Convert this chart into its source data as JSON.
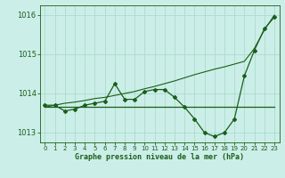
{
  "background_color": "#cceee8",
  "grid_color": "#aaddcc",
  "line_color_main": "#1a5e1a",
  "x_labels": [
    "0",
    "1",
    "2",
    "3",
    "4",
    "5",
    "6",
    "7",
    "8",
    "9",
    "10",
    "11",
    "12",
    "13",
    "14",
    "15",
    "16",
    "17",
    "18",
    "19",
    "20",
    "21",
    "22",
    "23"
  ],
  "hours": [
    0,
    1,
    2,
    3,
    4,
    5,
    6,
    7,
    8,
    9,
    10,
    11,
    12,
    13,
    14,
    15,
    16,
    17,
    18,
    19,
    20,
    21,
    22,
    23
  ],
  "pressure_actual": [
    1013.7,
    1013.7,
    1013.55,
    1013.6,
    1013.7,
    1013.75,
    1013.8,
    1014.25,
    1013.85,
    1013.85,
    1014.05,
    1014.1,
    1014.1,
    1013.9,
    1013.65,
    1013.35,
    1013.0,
    1012.9,
    1013.0,
    1013.35,
    1014.45,
    1015.1,
    1015.65,
    1015.95
  ],
  "pressure_flat": [
    1013.65,
    1013.65,
    1013.65,
    1013.65,
    1013.65,
    1013.65,
    1013.65,
    1013.65,
    1013.65,
    1013.65,
    1013.65,
    1013.65,
    1013.65,
    1013.65,
    1013.65,
    1013.65,
    1013.65,
    1013.65,
    1013.65,
    1013.65,
    1013.65,
    1013.65,
    1013.65,
    1013.65
  ],
  "pressure_trend": [
    1013.65,
    1013.7,
    1013.75,
    1013.78,
    1013.82,
    1013.87,
    1013.9,
    1013.95,
    1014.0,
    1014.05,
    1014.12,
    1014.18,
    1014.25,
    1014.32,
    1014.4,
    1014.48,
    1014.55,
    1014.62,
    1014.68,
    1014.75,
    1014.82,
    1015.15,
    1015.62,
    1016.0
  ],
  "ylim": [
    1012.75,
    1016.25
  ],
  "yticks": [
    1013,
    1014,
    1015,
    1016
  ],
  "xlabel": "Graphe pression niveau de la mer (hPa)",
  "marker": "D",
  "marker_size": 2.0,
  "title_fontsize": 6,
  "xlabel_fontsize": 6,
  "ytick_fontsize": 6,
  "xtick_fontsize": 5
}
